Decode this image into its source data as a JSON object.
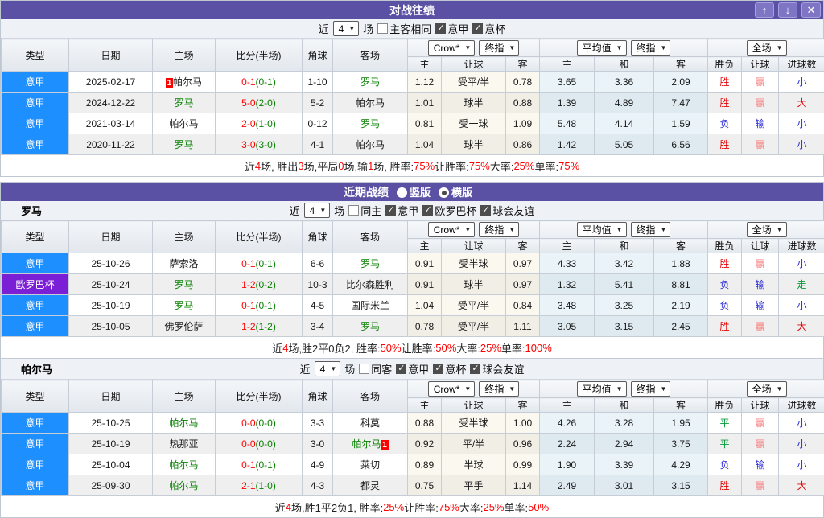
{
  "table_header": {
    "type": "类型",
    "date": "日期",
    "home": "主场",
    "score": "比分(半场)",
    "corner": "角球",
    "away": "客场",
    "groups": [
      {
        "selects": [
          "Crow*",
          "终指"
        ],
        "cols": [
          "主",
          "让球",
          "客"
        ]
      },
      {
        "selects": [
          "平均值",
          "终指"
        ],
        "cols": [
          "主",
          "和",
          "客"
        ]
      },
      {
        "selects": [
          "全场"
        ],
        "cols": [
          "胜负",
          "让球",
          "进球数"
        ]
      }
    ]
  },
  "icons": {
    "up": "↑",
    "down": "↓",
    "close": "✕",
    "chevron": "▼"
  },
  "h2h": {
    "title": "对战往绩",
    "filter": {
      "prefix": "近",
      "count": "4",
      "suffix": "场",
      "checkboxes": [
        {
          "label": "主客相同",
          "checked": false
        },
        {
          "label": "意甲",
          "checked": true
        },
        {
          "label": "意杯",
          "checked": true
        }
      ]
    },
    "rows": [
      {
        "type": "意甲",
        "type_color": "blue",
        "date": "2025-02-17",
        "home": {
          "name": "帕尔马",
          "green": false,
          "badge": "1",
          "badge_side": "left"
        },
        "score_main": "0-1",
        "score_half": "(0-1)",
        "corner": "1-10",
        "away": {
          "name": "罗马",
          "green": true
        },
        "crow": [
          "1.12",
          "受平/半",
          "0.78"
        ],
        "avg": [
          "3.65",
          "3.36",
          "2.09"
        ],
        "results": [
          [
            "胜",
            "r"
          ],
          [
            "赢",
            "p"
          ],
          [
            "小",
            "b"
          ]
        ]
      },
      {
        "type": "意甲",
        "type_color": "blue",
        "date": "2024-12-22",
        "home": {
          "name": "罗马",
          "green": true
        },
        "score_main": "5-0",
        "score_half": "(2-0)",
        "corner": "5-2",
        "away": {
          "name": "帕尔马",
          "green": false
        },
        "crow": [
          "1.01",
          "球半",
          "0.88"
        ],
        "avg": [
          "1.39",
          "4.89",
          "7.47"
        ],
        "results": [
          [
            "胜",
            "r"
          ],
          [
            "赢",
            "p"
          ],
          [
            "大",
            "r"
          ]
        ]
      },
      {
        "type": "意甲",
        "type_color": "blue",
        "date": "2021-03-14",
        "home": {
          "name": "帕尔马",
          "green": false
        },
        "score_main": "2-0",
        "score_half": "(1-0)",
        "corner": "0-12",
        "away": {
          "name": "罗马",
          "green": true
        },
        "crow": [
          "0.81",
          "受一球",
          "1.09"
        ],
        "avg": [
          "5.48",
          "4.14",
          "1.59"
        ],
        "results": [
          [
            "负",
            "b"
          ],
          [
            "输",
            "b"
          ],
          [
            "小",
            "b"
          ]
        ]
      },
      {
        "type": "意甲",
        "type_color": "blue",
        "date": "2020-11-22",
        "home": {
          "name": "罗马",
          "green": true
        },
        "score_main": "3-0",
        "score_half": "(3-0)",
        "corner": "4-1",
        "away": {
          "name": "帕尔马",
          "green": false
        },
        "crow": [
          "1.04",
          "球半",
          "0.86"
        ],
        "avg": [
          "1.42",
          "5.05",
          "6.56"
        ],
        "results": [
          [
            "胜",
            "r"
          ],
          [
            "赢",
            "p"
          ],
          [
            "小",
            "b"
          ]
        ]
      }
    ],
    "summary_segments": [
      [
        "近 ",
        "d"
      ],
      [
        "4",
        "r"
      ],
      [
        " 场, 胜出 ",
        "d"
      ],
      [
        "3",
        "r"
      ],
      [
        " 场,平局 ",
        "d"
      ],
      [
        "0",
        "r"
      ],
      [
        " 场,输 ",
        "d"
      ],
      [
        "1",
        "r"
      ],
      [
        " 场, 胜率: ",
        "d"
      ],
      [
        "75%",
        "r"
      ],
      [
        " 让胜率: ",
        "d"
      ],
      [
        "75%",
        "r"
      ],
      [
        " 大率: ",
        "d"
      ],
      [
        "25%",
        "r"
      ],
      [
        " 单率: ",
        "d"
      ],
      [
        "75%",
        "r"
      ]
    ]
  },
  "recent": {
    "title": "近期战绩",
    "radios": [
      {
        "label": "竖版",
        "dot": false
      },
      {
        "label": "横版",
        "dot": true
      }
    ],
    "teams": [
      {
        "name": "罗马",
        "filter": {
          "prefix": "近",
          "count": "4",
          "suffix": "场",
          "checkboxes": [
            {
              "label": "同主",
              "checked": false
            },
            {
              "label": "意甲",
              "checked": true
            },
            {
              "label": "欧罗巴杯",
              "checked": true
            },
            {
              "label": "球会友谊",
              "checked": true
            }
          ]
        },
        "rows": [
          {
            "type": "意甲",
            "type_color": "blue",
            "date": "25-10-26",
            "home": {
              "name": "萨索洛",
              "green": false
            },
            "score_main": "0-1",
            "score_half": "(0-1)",
            "corner": "6-6",
            "away": {
              "name": "罗马",
              "green": true
            },
            "crow": [
              "0.91",
              "受半球",
              "0.97"
            ],
            "avg": [
              "4.33",
              "3.42",
              "1.88"
            ],
            "results": [
              [
                "胜",
                "r"
              ],
              [
                "赢",
                "p"
              ],
              [
                "小",
                "b"
              ]
            ]
          },
          {
            "type": "欧罗巴杯",
            "type_color": "purple",
            "date": "25-10-24",
            "home": {
              "name": "罗马",
              "green": true
            },
            "score_main": "1-2",
            "score_half": "(0-2)",
            "corner": "10-3",
            "away": {
              "name": "比尔森胜利",
              "green": false
            },
            "crow": [
              "0.91",
              "球半",
              "0.97"
            ],
            "avg": [
              "1.32",
              "5.41",
              "8.81"
            ],
            "results": [
              [
                "负",
                "b"
              ],
              [
                "输",
                "b"
              ],
              [
                "走",
                "g"
              ]
            ]
          },
          {
            "type": "意甲",
            "type_color": "blue",
            "date": "25-10-19",
            "home": {
              "name": "罗马",
              "green": true
            },
            "score_main": "0-1",
            "score_half": "(0-1)",
            "corner": "4-5",
            "away": {
              "name": "国际米兰",
              "green": false
            },
            "crow": [
              "1.04",
              "受平/半",
              "0.84"
            ],
            "avg": [
              "3.48",
              "3.25",
              "2.19"
            ],
            "results": [
              [
                "负",
                "b"
              ],
              [
                "输",
                "b"
              ],
              [
                "小",
                "b"
              ]
            ]
          },
          {
            "type": "意甲",
            "type_color": "blue",
            "date": "25-10-05",
            "home": {
              "name": "佛罗伦萨",
              "green": false
            },
            "score_main": "1-2",
            "score_half": "(1-2)",
            "corner": "3-4",
            "away": {
              "name": "罗马",
              "green": true
            },
            "crow": [
              "0.78",
              "受平/半",
              "1.11"
            ],
            "avg": [
              "3.05",
              "3.15",
              "2.45"
            ],
            "results": [
              [
                "胜",
                "r"
              ],
              [
                "赢",
                "p"
              ],
              [
                "大",
                "r"
              ]
            ]
          }
        ],
        "summary_segments": [
          [
            "近",
            "d"
          ],
          [
            "4",
            "r"
          ],
          [
            "场,胜2平0负2, 胜率:",
            "d"
          ],
          [
            "50%",
            "r"
          ],
          [
            " 让胜率:",
            "d"
          ],
          [
            "50%",
            "r"
          ],
          [
            " 大率:",
            "d"
          ],
          [
            "25%",
            "r"
          ],
          [
            " 单率:",
            "d"
          ],
          [
            "100%",
            "r"
          ]
        ]
      },
      {
        "name": "帕尔马",
        "filter": {
          "prefix": "近",
          "count": "4",
          "suffix": "场",
          "checkboxes": [
            {
              "label": "同客",
              "checked": false
            },
            {
              "label": "意甲",
              "checked": true
            },
            {
              "label": "意杯",
              "checked": true
            },
            {
              "label": "球会友谊",
              "checked": true
            }
          ]
        },
        "rows": [
          {
            "type": "意甲",
            "type_color": "blue",
            "date": "25-10-25",
            "home": {
              "name": "帕尔马",
              "green": true
            },
            "score_main": "0-0",
            "score_half": "(0-0)",
            "corner": "3-3",
            "away": {
              "name": "科莫",
              "green": false
            },
            "crow": [
              "0.88",
              "受半球",
              "1.00"
            ],
            "avg": [
              "4.26",
              "3.28",
              "1.95"
            ],
            "results": [
              [
                "平",
                "g"
              ],
              [
                "赢",
                "p"
              ],
              [
                "小",
                "b"
              ]
            ]
          },
          {
            "type": "意甲",
            "type_color": "blue",
            "date": "25-10-19",
            "home": {
              "name": "热那亚",
              "green": false
            },
            "score_main": "0-0",
            "score_half": "(0-0)",
            "corner": "3-0",
            "away": {
              "name": "帕尔马",
              "green": true,
              "badge": "1",
              "badge_side": "right"
            },
            "crow": [
              "0.92",
              "平/半",
              "0.96"
            ],
            "avg": [
              "2.24",
              "2.94",
              "3.75"
            ],
            "results": [
              [
                "平",
                "g"
              ],
              [
                "赢",
                "p"
              ],
              [
                "小",
                "b"
              ]
            ]
          },
          {
            "type": "意甲",
            "type_color": "blue",
            "date": "25-10-04",
            "home": {
              "name": "帕尔马",
              "green": true
            },
            "score_main": "0-1",
            "score_half": "(0-1)",
            "corner": "4-9",
            "away": {
              "name": "莱切",
              "green": false
            },
            "crow": [
              "0.89",
              "半球",
              "0.99"
            ],
            "avg": [
              "1.90",
              "3.39",
              "4.29"
            ],
            "results": [
              [
                "负",
                "b"
              ],
              [
                "输",
                "b"
              ],
              [
                "小",
                "b"
              ]
            ]
          },
          {
            "type": "意甲",
            "type_color": "blue",
            "date": "25-09-30",
            "home": {
              "name": "帕尔马",
              "green": true
            },
            "score_main": "2-1",
            "score_half": "(1-0)",
            "corner": "4-3",
            "away": {
              "name": "都灵",
              "green": false
            },
            "crow": [
              "0.75",
              "平手",
              "1.14"
            ],
            "avg": [
              "2.49",
              "3.01",
              "3.15"
            ],
            "results": [
              [
                "胜",
                "r"
              ],
              [
                "赢",
                "p"
              ],
              [
                "大",
                "r"
              ]
            ]
          }
        ],
        "summary_segments": [
          [
            "近",
            "d"
          ],
          [
            "4",
            "r"
          ],
          [
            "场,胜1平2负1, 胜率:",
            "d"
          ],
          [
            "25%",
            "r"
          ],
          [
            " 让胜率:",
            "d"
          ],
          [
            "75%",
            "r"
          ],
          [
            " 大率:",
            "d"
          ],
          [
            "25%",
            "r"
          ],
          [
            " 单率:",
            "d"
          ],
          [
            "50%",
            "r"
          ]
        ]
      }
    ]
  },
  "colors": {
    "purple": "#5a51a5",
    "league_blue": "#1e8fff",
    "cup_purple": "#7b1fd6",
    "score_red": "#ff0000",
    "green": "#088000",
    "loss_blue": "#2b2bd5",
    "win_red": "#e60000",
    "handicap_pink": "#f87c7c"
  }
}
